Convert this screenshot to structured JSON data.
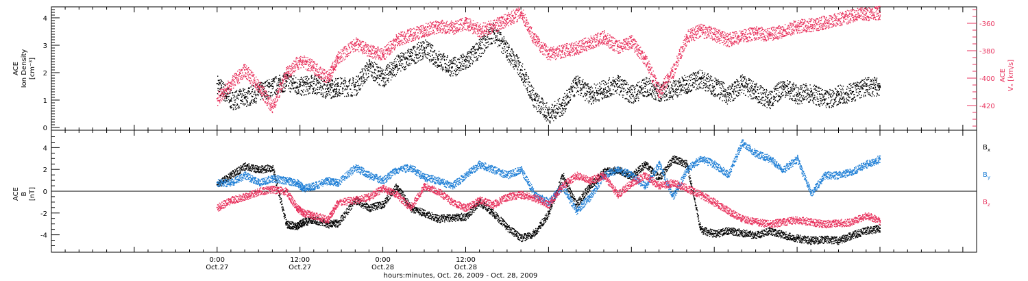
{
  "chart_data": [
    {
      "type": "scatter",
      "title": "",
      "ylabel": [
        "ACE",
        "Ion Density",
        "[cm⁻³]"
      ],
      "ylim": [
        -0.1,
        4.4
      ],
      "yticks": [
        0,
        1,
        2,
        3,
        4
      ],
      "y2label": [
        "ACE",
        "Vₓ [km/s]"
      ],
      "y2lim": [
        -348,
        -438
      ],
      "y2ticks": [
        -360,
        -380,
        -400,
        -420
      ],
      "series": [
        {
          "name": "Ion Density",
          "axis": "left",
          "color": "#000000",
          "x": [
            0,
            2,
            4,
            6,
            8,
            10,
            12,
            14,
            16,
            17.5,
            20,
            22,
            24,
            26,
            28,
            30,
            32,
            34,
            36,
            38,
            40,
            42,
            44,
            46,
            48,
            50,
            52,
            54,
            56,
            58,
            60,
            62,
            64,
            66,
            68,
            70,
            72,
            74,
            76,
            78,
            80,
            82,
            84,
            86,
            88,
            90,
            92,
            94,
            96
          ],
          "y": [
            1.6,
            1.0,
            1.1,
            1.3,
            1.5,
            1.7,
            1.5,
            1.6,
            1.4,
            1.5,
            1.5,
            2.2,
            1.8,
            2.3,
            2.6,
            2.9,
            2.5,
            2.2,
            2.4,
            2.9,
            3.5,
            2.8,
            2.1,
            1.0,
            0.5,
            0.8,
            1.6,
            1.2,
            1.4,
            1.6,
            1.2,
            1.5,
            1.3,
            1.4,
            1.6,
            1.8,
            1.5,
            1.2,
            1.6,
            1.3,
            1.0,
            1.5,
            1.2,
            1.3,
            1.0,
            1.2,
            1.3,
            1.5,
            1.5
          ]
        },
        {
          "name": "Vx",
          "axis": "right",
          "color": "#e8315c",
          "x": [
            0,
            2,
            4,
            6,
            8,
            10,
            12,
            14,
            16,
            17.5,
            20,
            22,
            24,
            26,
            28,
            30,
            32,
            34,
            36,
            38,
            40,
            42,
            44,
            46,
            48,
            50,
            52,
            54,
            56,
            58,
            60,
            62,
            64,
            66,
            68,
            70,
            72,
            74,
            76,
            78,
            80,
            82,
            84,
            86,
            88,
            90,
            92,
            94,
            96
          ],
          "y": [
            -415,
            -404,
            -394,
            -406,
            -421,
            -396,
            -387,
            -392,
            -400,
            -385,
            -375,
            -380,
            -383,
            -372,
            -368,
            -365,
            -362,
            -363,
            -360,
            -365,
            -362,
            -357,
            -352,
            -372,
            -382,
            -380,
            -378,
            -374,
            -370,
            -377,
            -373,
            -386,
            -410,
            -395,
            -370,
            -365,
            -368,
            -372,
            -369,
            -367,
            -368,
            -365,
            -362,
            -361,
            -359,
            -357,
            -354,
            -353,
            -352
          ]
        }
      ]
    },
    {
      "type": "scatter",
      "ylabel": [
        "ACE",
        "B",
        "[nT]"
      ],
      "ylim": [
        -5.6,
        5.6
      ],
      "yticks": [
        -4,
        -2,
        0,
        2,
        4
      ],
      "xlabel": "hours:minutes, Oct. 26, 2009 - Oct. 28, 2009",
      "xlim": [
        -24,
        110
      ],
      "xticks": [
        {
          "value": 0,
          "label": "0:00",
          "date": "Oct.27"
        },
        {
          "value": 12,
          "label": "12:00",
          "date": "Oct.27"
        },
        {
          "value": 24,
          "label": "0:00",
          "date": "Oct.28"
        },
        {
          "value": 36,
          "label": "12:00",
          "date": "Oct.28"
        }
      ],
      "series": [
        {
          "name": "Bx",
          "label_main": "B",
          "label_sub": "x",
          "color": "#000000",
          "x": [
            0,
            2,
            4,
            6,
            8,
            10,
            11.5,
            12.5,
            14,
            16,
            17.5,
            20,
            22,
            24,
            26,
            28,
            30,
            32,
            34,
            36,
            38,
            40,
            42,
            44,
            46,
            48,
            50,
            52,
            54,
            56,
            58,
            60,
            62,
            64,
            66,
            68,
            70,
            72,
            74,
            76,
            78,
            80,
            82,
            84,
            86,
            88,
            90,
            92,
            94,
            96
          ],
          "y": [
            0.6,
            1.5,
            2.3,
            2.0,
            2.2,
            -3.0,
            -3.2,
            -2.8,
            -2.6,
            -3.0,
            -2.9,
            -0.8,
            -1.5,
            -1.2,
            0.5,
            -1.5,
            -2.0,
            -2.5,
            -2.4,
            -2.3,
            -1.0,
            -2.0,
            -3.3,
            -4.3,
            -3.8,
            -2.0,
            1.5,
            -1.2,
            0.5,
            1.8,
            2.0,
            1.4,
            2.5,
            1.2,
            3.0,
            2.5,
            -3.5,
            -3.9,
            -3.6,
            -3.8,
            -4.0,
            -3.6,
            -4.0,
            -4.3,
            -4.5,
            -4.4,
            -4.5,
            -4.0,
            -3.6,
            -3.4
          ]
        },
        {
          "name": "By",
          "label_main": "B",
          "label_sub": "y",
          "color": "#1f7fd6",
          "x": [
            0,
            2,
            4,
            6,
            8,
            10,
            11.5,
            12.5,
            14,
            16,
            17.5,
            20,
            22,
            24,
            26,
            28,
            30,
            32,
            34,
            36,
            38,
            40,
            42,
            44,
            46,
            48,
            50,
            52,
            54,
            56,
            58,
            60,
            62,
            64,
            66,
            68,
            70,
            72,
            74,
            76,
            78,
            80,
            82,
            84,
            86,
            88,
            90,
            92,
            94,
            96
          ],
          "y": [
            0.8,
            0.8,
            1.5,
            0.8,
            1.2,
            1.0,
            0.8,
            0.3,
            0.5,
            1.0,
            0.8,
            2.2,
            1.5,
            1.0,
            2.0,
            2.2,
            1.3,
            1.0,
            0.5,
            1.5,
            2.5,
            2.0,
            1.5,
            2.0,
            -0.3,
            -1.0,
            0.5,
            -1.8,
            -0.5,
            1.5,
            2.0,
            1.5,
            0.5,
            2.5,
            -0.5,
            2.0,
            3.0,
            2.5,
            1.5,
            4.5,
            3.5,
            3.0,
            2.0,
            3.0,
            -0.2,
            1.5,
            1.5,
            1.8,
            2.5,
            3.0
          ]
        },
        {
          "name": "Bz",
          "label_main": "B",
          "label_sub": "z",
          "color": "#e8315c",
          "x": [
            0,
            2,
            4,
            6,
            8,
            10,
            11.5,
            12.5,
            14,
            16,
            17.5,
            20,
            22,
            24,
            26,
            28,
            30,
            32,
            34,
            36,
            38,
            40,
            42,
            44,
            46,
            48,
            50,
            52,
            54,
            56,
            58,
            60,
            62,
            64,
            66,
            68,
            70,
            72,
            74,
            76,
            78,
            80,
            82,
            84,
            86,
            88,
            90,
            92,
            94,
            96
          ],
          "y": [
            -1.5,
            -0.8,
            -0.5,
            0.0,
            0.2,
            0.0,
            -1.5,
            -2.0,
            -2.2,
            -2.6,
            -1.0,
            -0.8,
            -0.5,
            0.3,
            -0.3,
            -1.5,
            0.5,
            0.0,
            -1.0,
            -1.5,
            -0.8,
            -1.2,
            -0.5,
            -0.3,
            -0.6,
            -1.2,
            0.5,
            1.5,
            1.0,
            1.5,
            -0.3,
            0.8,
            1.5,
            0.5,
            0.8,
            0.3,
            -0.3,
            -1.0,
            -1.8,
            -2.5,
            -2.8,
            -3.0,
            -2.8,
            -2.6,
            -2.8,
            -3.0,
            -2.9,
            -2.8,
            -2.2,
            -2.7
          ]
        }
      ]
    }
  ]
}
